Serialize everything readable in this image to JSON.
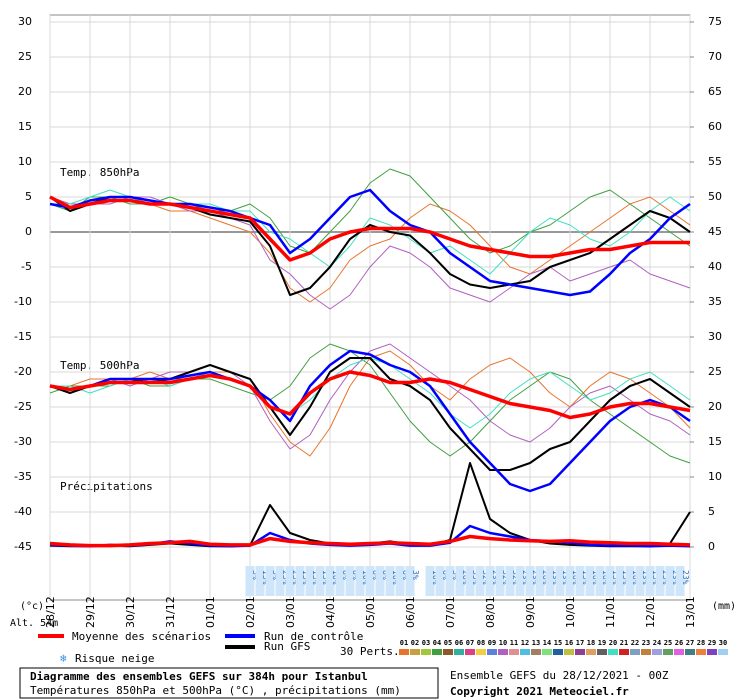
{
  "chart_data": {
    "type": "line",
    "x": [
      0,
      12,
      24,
      36,
      48,
      60,
      72,
      84,
      96,
      108,
      120,
      132,
      144,
      156,
      168,
      180,
      192,
      204,
      216,
      228,
      240,
      252,
      264,
      276,
      288,
      300,
      312,
      324,
      336,
      348,
      360,
      372,
      384
    ],
    "xlim": [
      0,
      384
    ],
    "xticks": [
      {
        "value": 0,
        "label": "28/12"
      },
      {
        "value": 24,
        "label": "29/12"
      },
      {
        "value": 48,
        "label": "30/12"
      },
      {
        "value": 72,
        "label": "31/12"
      },
      {
        "value": 96,
        "label": "01/01"
      },
      {
        "value": 120,
        "label": "02/01"
      },
      {
        "value": 144,
        "label": "03/01"
      },
      {
        "value": 168,
        "label": "04/01"
      },
      {
        "value": 192,
        "label": "05/01"
      },
      {
        "value": 216,
        "label": "06/01"
      },
      {
        "value": 240,
        "label": "07/01"
      },
      {
        "value": 264,
        "label": "08/01"
      },
      {
        "value": 288,
        "label": "09/01"
      },
      {
        "value": 312,
        "label": "10/01"
      },
      {
        "value": 336,
        "label": "11/01"
      },
      {
        "value": 360,
        "label": "12/01"
      },
      {
        "value": 384,
        "label": "13/01"
      }
    ],
    "ylim": [
      -52,
      31
    ],
    "yticks": [
      -45,
      -40,
      -35,
      -30,
      -25,
      -20,
      -15,
      -10,
      -5,
      0,
      5,
      10,
      15,
      20,
      25,
      30
    ],
    "y2lim": [
      -7,
      76
    ],
    "y2ticks": [
      0,
      5,
      10,
      15,
      20,
      25,
      30,
      35,
      40,
      45,
      50,
      55,
      60,
      65,
      70,
      75
    ],
    "y_unit": "(°c)",
    "y2_unit": "(mm)",
    "altitude": "Alt. 54m",
    "grid": true,
    "panel_labels": {
      "t850": "Temp. 850hPa",
      "t500": "Temp. 500hPa",
      "precip": "Précipitations"
    },
    "series": [
      {
        "name": "Moyenne des scénarios",
        "color": "#ff0000",
        "t850_values": [
          5,
          3.5,
          4,
          4.5,
          4.5,
          4,
          4,
          3.5,
          3,
          2.5,
          2,
          -1,
          -4,
          -3,
          -1,
          0,
          0.5,
          0.5,
          0.5,
          0,
          -1,
          -2,
          -2.5,
          -3,
          -3.5,
          -3.5,
          -3,
          -2.5,
          -2.5,
          -2,
          -1.5,
          -1.5,
          -1.5
        ],
        "t500_values": [
          -22,
          -22.5,
          -22,
          -21.5,
          -21.5,
          -21.5,
          -21.5,
          -21,
          -20.5,
          -21,
          -22,
          -25,
          -26,
          -23,
          -21,
          -20,
          -20.5,
          -21.5,
          -21.5,
          -21,
          -21.5,
          -22.5,
          -23.5,
          -24.5,
          -25,
          -25.5,
          -26.5,
          -26,
          -25,
          -24.5,
          -24.5,
          -25,
          -25.5
        ],
        "precip_values": [
          0.5,
          0.3,
          0.2,
          0.2,
          0.3,
          0.5,
          0.6,
          0.8,
          0.4,
          0.3,
          0.3,
          1.2,
          0.8,
          0.6,
          0.5,
          0.4,
          0.5,
          0.6,
          0.5,
          0.4,
          0.8,
          1.5,
          1.2,
          1.0,
          0.9,
          0.8,
          0.9,
          0.7,
          0.6,
          0.5,
          0.5,
          0.4,
          0.3
        ]
      },
      {
        "name": "Run de contrôle",
        "color": "#0000ff",
        "t850_values": [
          4,
          3.5,
          4.5,
          5,
          5,
          4.5,
          4,
          4,
          3.5,
          3,
          2,
          1,
          -3,
          -1,
          2,
          5,
          6,
          3,
          1,
          0,
          -3,
          -5,
          -7,
          -7.5,
          -8,
          -8.5,
          -9,
          -8.5,
          -6,
          -3,
          -1,
          2,
          4
        ],
        "t500_values": [
          -22,
          -22.5,
          -22,
          -21,
          -21,
          -21,
          -21,
          -20.5,
          -20,
          -21,
          -22,
          -24,
          -27,
          -22,
          -19,
          -17,
          -17.5,
          -19,
          -20,
          -22,
          -26,
          -30,
          -33,
          -36,
          -37,
          -36,
          -33,
          -30,
          -27,
          -25,
          -24,
          -25,
          -27
        ],
        "precip_values": [
          0.3,
          0.2,
          0.1,
          0.3,
          0.2,
          0.4,
          0.8,
          0.5,
          0.2,
          0.1,
          0.2,
          2,
          1,
          0.5,
          0.3,
          0.2,
          0.3,
          0.5,
          0.2,
          0.2,
          0.6,
          3,
          2,
          1.5,
          1,
          0.8,
          0.6,
          0.3,
          0.2,
          0.2,
          0.1,
          0.2,
          0.1
        ]
      },
      {
        "name": "Run GFS",
        "color": "#000000",
        "t850_values": [
          5,
          3,
          4,
          5,
          5,
          4.5,
          4,
          3.5,
          2.5,
          2,
          1.5,
          -2,
          -9,
          -8,
          -5,
          -1,
          1,
          0,
          -0.5,
          -3,
          -6,
          -7.5,
          -8,
          -7.5,
          -7,
          -5,
          -4,
          -3,
          -1,
          1,
          3,
          2,
          0
        ],
        "t500_values": [
          -22,
          -23,
          -22,
          -21,
          -21,
          -21.5,
          -21,
          -20,
          -19,
          -20,
          -21,
          -25,
          -29,
          -25,
          -20,
          -18,
          -18,
          -21,
          -22,
          -24,
          -28,
          -31,
          -34,
          -34,
          -33,
          -31,
          -30,
          -27,
          -24,
          -22,
          -21,
          -23,
          -25
        ],
        "precip_values": [
          0.2,
          0.1,
          0.1,
          0.2,
          0.1,
          0.3,
          0.5,
          0.3,
          0.1,
          0.1,
          0.2,
          6,
          2,
          1,
          0.5,
          0.3,
          0.5,
          0.8,
          0.4,
          0.2,
          1,
          12,
          4,
          2,
          1,
          0.5,
          0.3,
          0.2,
          0.1,
          0.1,
          0.1,
          0.5,
          5
        ]
      }
    ],
    "perturbations": {
      "label": "30 Perts.",
      "members": [
        {
          "name": "01",
          "color": "#e8742c",
          "t850_values": [
            5,
            4,
            4,
            5,
            5,
            4,
            3,
            3,
            2,
            1,
            0,
            -3,
            -8,
            -10,
            -8,
            -4,
            -2,
            -1,
            2,
            4,
            3,
            1,
            -2,
            -5,
            -6,
            -4,
            -2,
            0,
            2,
            4,
            5,
            3,
            1
          ],
          "t500_values": [
            -22,
            -22,
            -21,
            -21,
            -21,
            -20,
            -21,
            -21,
            -20,
            -20,
            -21,
            -26,
            -30,
            -32,
            -28,
            -22,
            -18,
            -17,
            -19,
            -22,
            -24,
            -21,
            -19,
            -18,
            -20,
            -23,
            -25,
            -22,
            -20,
            -21,
            -23,
            -25,
            -28
          ]
        },
        {
          "name": "02",
          "color": "#c8a040"
        },
        {
          "name": "03",
          "color": "#a0c838"
        },
        {
          "name": "04",
          "color": "#40a040",
          "t850_values": [
            4,
            3,
            5,
            5,
            4,
            4,
            5,
            4,
            3,
            3,
            4,
            2,
            -2,
            -3,
            0,
            3,
            7,
            9,
            8,
            5,
            2,
            -1,
            -3,
            -2,
            0,
            1,
            3,
            5,
            6,
            4,
            2,
            0,
            -2
          ],
          "t500_values": [
            -23,
            -22,
            -22,
            -22,
            -21,
            -22,
            -22,
            -21,
            -21,
            -22,
            -23,
            -24,
            -22,
            -18,
            -16,
            -17,
            -19,
            -23,
            -27,
            -30,
            -32,
            -30,
            -27,
            -24,
            -22,
            -20,
            -21,
            -24,
            -26,
            -28,
            -30,
            -32,
            -33
          ]
        },
        {
          "name": "05",
          "color": "#8c5a28"
        },
        {
          "name": "06",
          "color": "#30b0a0"
        },
        {
          "name": "07",
          "color": "#e04080"
        },
        {
          "name": "08",
          "color": "#f0d040"
        },
        {
          "name": "09",
          "color": "#6080e0"
        },
        {
          "name": "10",
          "color": "#b060c0",
          "t850_values": [
            5,
            4,
            4,
            4,
            5,
            5,
            4,
            3,
            3,
            2,
            1,
            -4,
            -6,
            -9,
            -11,
            -9,
            -5,
            -2,
            -3,
            -5,
            -8,
            -9,
            -10,
            -8,
            -6,
            -5,
            -7,
            -6,
            -5,
            -4,
            -6,
            -7,
            -8
          ],
          "t500_values": [
            -22,
            -23,
            -22,
            -21,
            -22,
            -21,
            -20,
            -20,
            -19,
            -20,
            -22,
            -27,
            -31,
            -29,
            -24,
            -20,
            -17,
            -16,
            -18,
            -20,
            -22,
            -24,
            -27,
            -29,
            -30,
            -28,
            -25,
            -23,
            -22,
            -24,
            -26,
            -27,
            -29
          ]
        },
        {
          "name": "11",
          "color": "#e09090"
        },
        {
          "name": "12",
          "color": "#50c0e0"
        },
        {
          "name": "13",
          "color": "#a08060"
        },
        {
          "name": "14",
          "color": "#80e080"
        },
        {
          "name": "15",
          "color": "#2060a0"
        },
        {
          "name": "16",
          "color": "#c0c040"
        },
        {
          "name": "17",
          "color": "#904090"
        },
        {
          "name": "18",
          "color": "#e0a060"
        },
        {
          "name": "19",
          "color": "#606060"
        },
        {
          "name": "20",
          "color": "#40e0c0",
          "t850_values": [
            4,
            4,
            5,
            6,
            5,
            4,
            4,
            4,
            4,
            3,
            3,
            0,
            -1,
            -3,
            -5,
            -2,
            2,
            1,
            -1,
            -3,
            -2,
            -4,
            -6,
            -3,
            0,
            2,
            1,
            -1,
            -2,
            0,
            3,
            5,
            3
          ],
          "t500_values": [
            -22,
            -22,
            -23,
            -22,
            -21,
            -21,
            -22,
            -21,
            -20,
            -21,
            -22,
            -25,
            -26,
            -24,
            -21,
            -19,
            -18,
            -19,
            -21,
            -23,
            -26,
            -28,
            -26,
            -23,
            -21,
            -20,
            -22,
            -24,
            -23,
            -21,
            -20,
            -22,
            -24
          ]
        },
        {
          "name": "21",
          "color": "#d02020"
        },
        {
          "name": "22",
          "color": "#80a0c0"
        },
        {
          "name": "23",
          "color": "#c08040"
        },
        {
          "name": "24",
          "color": "#a0a0e0"
        },
        {
          "name": "25",
          "color": "#60a060"
        },
        {
          "name": "26",
          "color": "#e060e0"
        },
        {
          "name": "27",
          "color": "#408080"
        },
        {
          "name": "28",
          "color": "#f08040"
        },
        {
          "name": "29",
          "color": "#8040c0"
        },
        {
          "name": "30",
          "color": "#a0d0f0"
        }
      ]
    },
    "snow_risk": {
      "label": "Risque neige",
      "hours": [
        120,
        126,
        132,
        138,
        144,
        150,
        156,
        162,
        168,
        174,
        180,
        186,
        192,
        198,
        204,
        210,
        216,
        228,
        234,
        240,
        246,
        252,
        258,
        264,
        270,
        276,
        282,
        288,
        294,
        300,
        306,
        312,
        318,
        324,
        330,
        336,
        342,
        348,
        354,
        360,
        366,
        372,
        378
      ],
      "values": [
        3,
        13,
        3,
        23,
        23,
        13,
        13,
        13,
        10,
        6,
        6,
        10,
        6,
        6,
        10,
        6,
        3,
        10,
        6,
        3,
        26,
        35,
        32,
        29,
        32,
        32,
        29,
        29,
        26,
        19,
        19,
        16,
        13,
        16,
        16,
        13,
        13,
        16,
        19,
        13,
        23,
        29,
        23
      ],
      "value_labels": [
        "3%",
        "13%",
        "3%",
        "23%",
        "23%",
        "13%",
        "13%",
        "13%",
        "10%",
        "6%",
        "6%",
        "10%",
        "6%",
        "6%",
        "10%",
        "6%",
        "3%",
        "10%",
        "6%",
        "3%",
        "26%",
        "35%",
        "32%",
        "29%",
        "32%",
        "32%",
        "29%",
        "29%",
        "26%",
        "19%",
        "19%",
        "16%",
        "13%",
        "16%",
        "16%",
        "13%",
        "13%",
        "16%",
        "19%",
        "13%",
        "23%",
        "29%",
        "23%"
      ]
    },
    "title": "Diagramme des ensembles GEFS sur 384h pour Istanbul",
    "subtitle": "Températures 850hPa et 500hPa (°C) , précipitations (mm)",
    "run_info": "Ensemble GEFS du 28/12/2021 - 00Z",
    "copyright": "Copyright 2021 Meteociel.fr"
  }
}
